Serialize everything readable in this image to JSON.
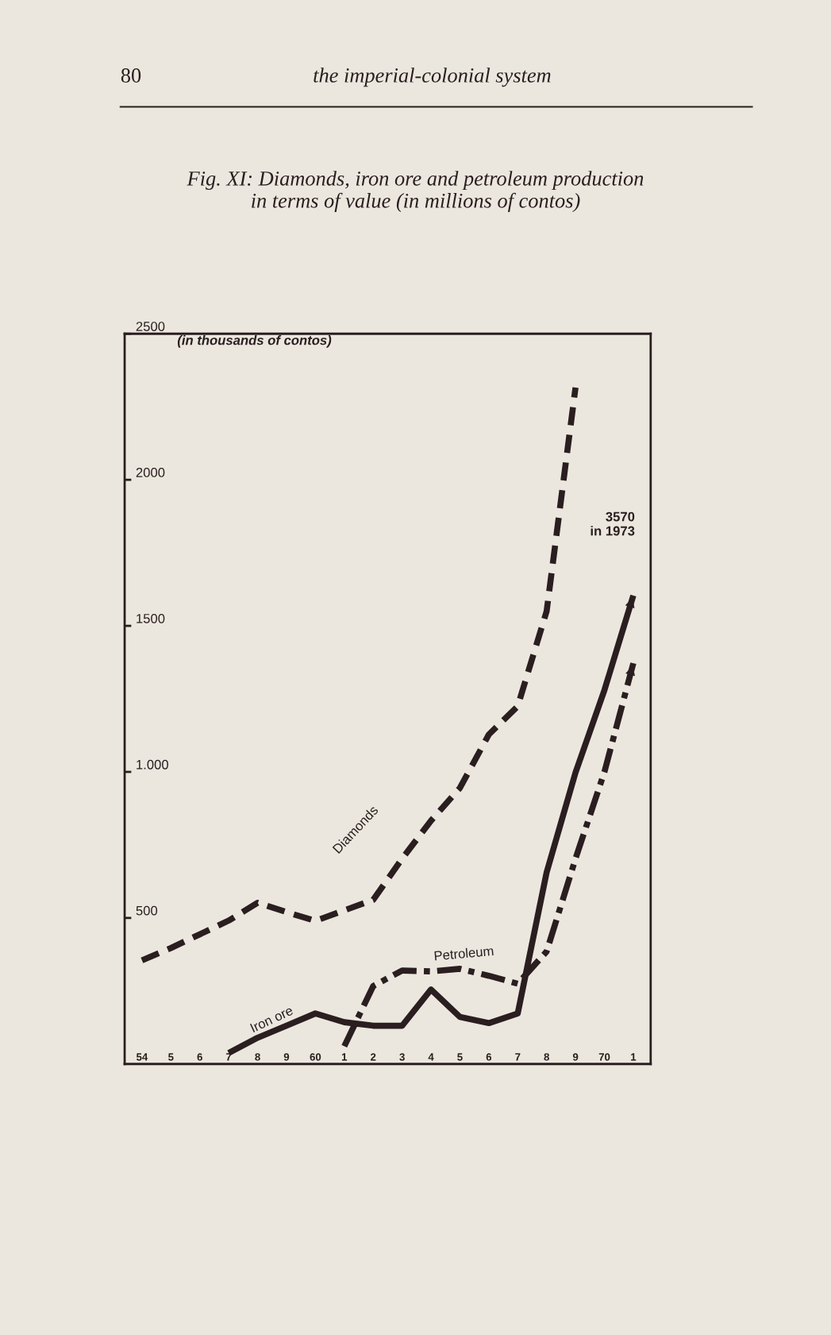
{
  "chart_data": {
    "type": "line",
    "title": "Fig. XI: Diamonds, iron ore and petroleum production\nin terms of value (in millions of contos)",
    "ylabel": "(in thousands of contos)",
    "annotations": [
      "80",
      "the imperial-colonial system",
      "3570\nin 1973"
    ],
    "categories": [
      "54",
      "5",
      "6",
      "7",
      "8",
      "9",
      "60",
      "1",
      "2",
      "3",
      "4",
      "5",
      "6",
      "7",
      "8",
      "9",
      "70",
      "1"
    ],
    "ylim": [
      0,
      2500
    ],
    "yticks": [
      500,
      {
        "value": 1000,
        "label": "1.000"
      },
      1500,
      2000,
      2500
    ],
    "grid": false,
    "series": [
      {
        "name": "Diamonds",
        "color": "#2a1e20",
        "line_style": "dashed",
        "values": [
          355,
          397,
          444,
          491,
          552,
          520,
          490,
          526,
          562,
          703,
          833,
          945,
          1128,
          1225,
          1550,
          2316,
          null,
          null
        ]
      },
      {
        "name": "Petroleum",
        "color": "#2a1e20",
        "line_style": "dashdot",
        "values": [
          null,
          null,
          null,
          null,
          null,
          null,
          null,
          61,
          267,
          320,
          317,
          326,
          302,
          275,
          385,
          703,
          1000,
          1372
        ]
      },
      {
        "name": "Iron ore",
        "color": "#2a1e20",
        "line_style": "solid",
        "values": [
          null,
          null,
          null,
          38,
          90,
          131,
          173,
          143,
          131,
          131,
          255,
          161,
          140,
          173,
          656,
          998,
          1280,
          1604
        ]
      }
    ]
  }
}
